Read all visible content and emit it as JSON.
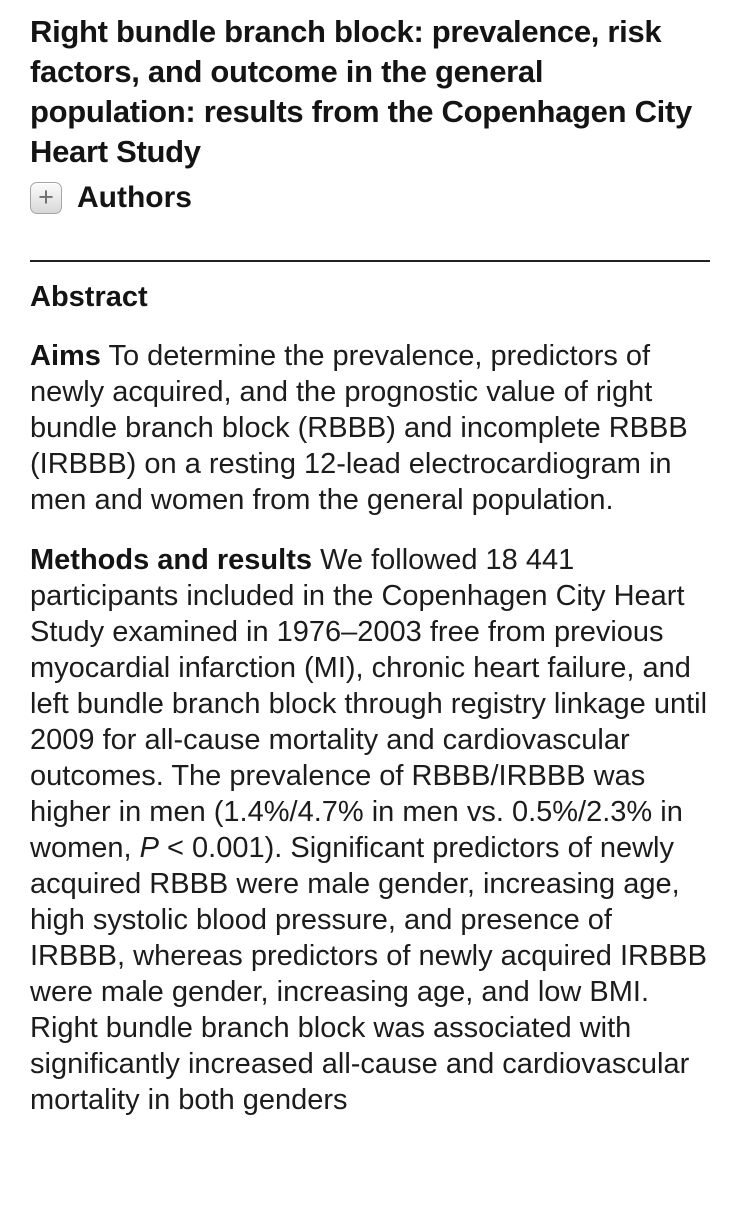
{
  "article": {
    "title": "Right bundle branch block: prevalence, risk factors, and outcome in the general population: results from the Copenhagen City Heart Study",
    "authors": {
      "toggle_glyph": "+",
      "label": "Authors"
    },
    "abstract": {
      "heading": "Abstract",
      "aims": {
        "label": "Aims",
        "text": "To determine the prevalence, predictors of newly acquired, and the prognostic value of right bundle branch block (RBBB) and incomplete RBBB (IRBBB) on a resting 12-lead electrocardiogram in men and women from the general population."
      },
      "methods": {
        "label": "Methods and results",
        "text_before_p": "We followed 18 441 participants included in the Copenhagen City Heart Study examined in 1976–2003 free from previous myocardial infarction (MI), chronic heart failure, and left bundle branch block through registry linkage until 2009 for all-cause mortality and cardiovascular outcomes. The prevalence of RBBB/IRBBB was higher in men (1.4%/4.7% in men vs. 0.5%/2.3% in women, ",
        "p_italic": "P",
        "text_after_p": " < 0.001). Significant predictors of newly acquired RBBB were male gender, increasing age, high systolic blood pressure, and presence of IRBBB, whereas predictors of newly acquired IRBBB were male gender, increasing age, and low BMI. Right bundle branch block was associated with significantly increased all-cause and cardiovascular mortality in both genders"
      }
    },
    "colors": {
      "background": "#ffffff",
      "text": "#1c1c1c",
      "divider": "#222222"
    }
  }
}
